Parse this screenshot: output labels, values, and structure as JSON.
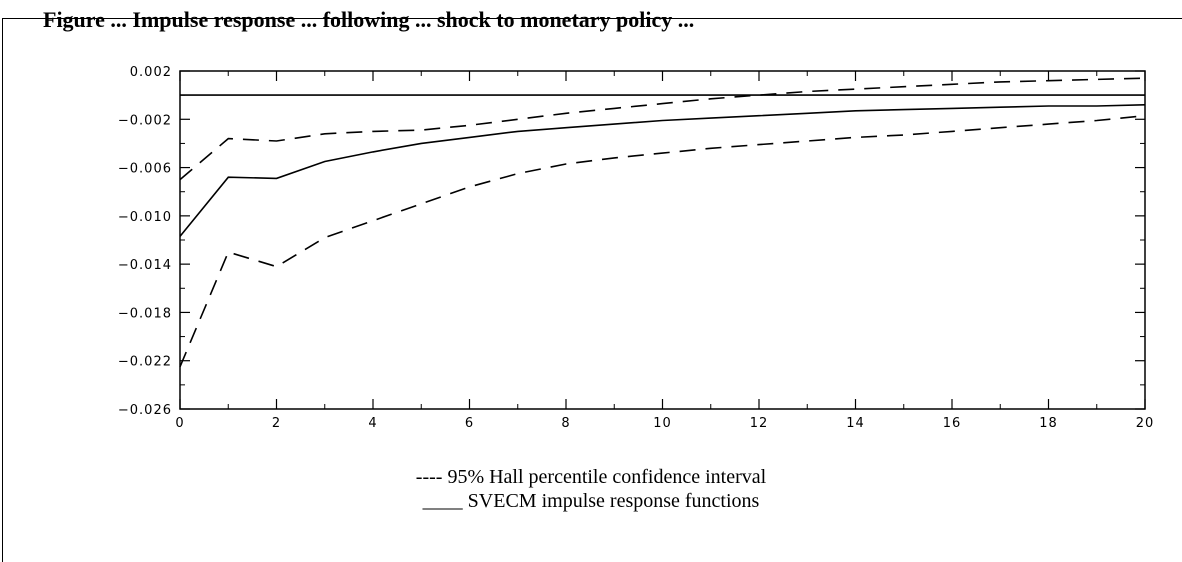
{
  "header": {
    "partial_title": "Figure ... Impulse response ... following ... shock to monetary policy ..."
  },
  "chart_data": {
    "type": "line",
    "title": "",
    "xlabel": "",
    "ylabel": "",
    "xlim": [
      0,
      20
    ],
    "ylim": [
      -0.026,
      0.002
    ],
    "x_ticks": [
      "0",
      "2",
      "4",
      "6",
      "8",
      "10",
      "12",
      "14",
      "16",
      "18",
      "20"
    ],
    "y_ticks": [
      "0.002",
      "−0.002",
      "−0.006",
      "−0.010",
      "−0.014",
      "−0.018",
      "−0.022",
      "−0.026"
    ],
    "series": [
      {
        "name": "SVECM impulse response functions",
        "style": "solid",
        "x": [
          0,
          1,
          2,
          3,
          4,
          5,
          6,
          7,
          8,
          9,
          10,
          11,
          12,
          13,
          14,
          15,
          16,
          17,
          18,
          19,
          20
        ],
        "y": [
          -0.0117,
          -0.0068,
          -0.0069,
          -0.0055,
          -0.0047,
          -0.004,
          -0.0035,
          -0.003,
          -0.0027,
          -0.0024,
          -0.0021,
          -0.0019,
          -0.0017,
          -0.0015,
          -0.0013,
          -0.0012,
          -0.0011,
          -0.001,
          -0.0009,
          -0.0009,
          -0.0008
        ]
      },
      {
        "name": "95% Hall percentile confidence interval (upper)",
        "style": "dashed",
        "x": [
          0,
          1,
          2,
          3,
          4,
          5,
          6,
          7,
          8,
          9,
          10,
          11,
          12,
          13,
          14,
          15,
          16,
          17,
          18,
          19,
          20
        ],
        "y": [
          -0.007,
          -0.0036,
          -0.0038,
          -0.0032,
          -0.003,
          -0.0029,
          -0.0025,
          -0.002,
          -0.0015,
          -0.0011,
          -0.0007,
          -0.0003,
          0.0,
          0.0003,
          0.0005,
          0.0007,
          0.0009,
          0.0011,
          0.0012,
          0.0013,
          0.0014
        ]
      },
      {
        "name": "95% Hall percentile confidence interval (lower)",
        "style": "dashed",
        "x": [
          0,
          1,
          2,
          3,
          4,
          5,
          6,
          7,
          8,
          9,
          10,
          11,
          12,
          13,
          14,
          15,
          16,
          17,
          18,
          19,
          20
        ],
        "y": [
          -0.0225,
          -0.013,
          -0.0142,
          -0.0118,
          -0.0104,
          -0.009,
          -0.0076,
          -0.0065,
          -0.0057,
          -0.0052,
          -0.0048,
          -0.0044,
          -0.0041,
          -0.0038,
          -0.0035,
          -0.0033,
          -0.003,
          -0.0027,
          -0.0024,
          -0.0021,
          -0.0017
        ]
      },
      {
        "name": "zero line",
        "style": "solid",
        "x": [
          0,
          20
        ],
        "y": [
          0,
          0
        ]
      }
    ],
    "legend": {
      "placement": "bottom-center",
      "entries": [
        "---- 95% Hall percentile confidence interval",
        "____ SVECM impulse response functions"
      ]
    },
    "grid": false
  }
}
